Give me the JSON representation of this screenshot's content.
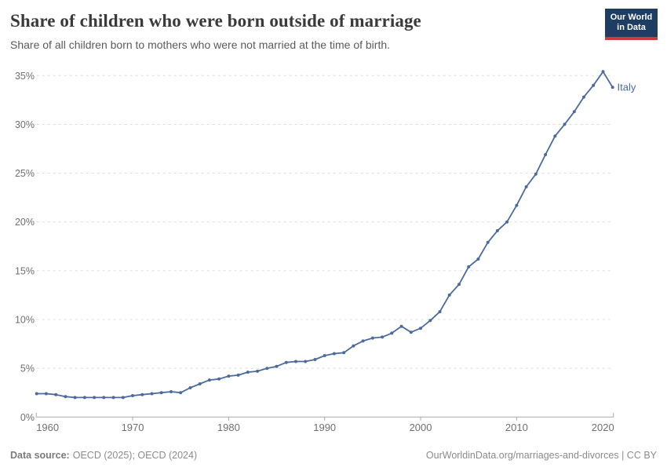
{
  "header": {
    "title": "Share of children who were born outside of marriage",
    "subtitle": "Share of all children born to mothers who were not married at the time of birth."
  },
  "logo": {
    "line1": "Our World",
    "line2": "in Data",
    "bg_color": "#1d3d63",
    "stripe_color": "#cc3b3b"
  },
  "footer": {
    "source_label": "Data source:",
    "source_value": "OECD (2025); OECD (2024)",
    "credit": "OurWorldinData.org/marriages-and-divorces | CC BY"
  },
  "chart_data": {
    "type": "line",
    "title": "Share of children who were born outside of marriage",
    "subtitle": "Share of all children born to mothers who were not married at the time of birth.",
    "xlabel": "",
    "ylabel": "",
    "xlim": [
      1960,
      2020
    ],
    "ylim": [
      0,
      35
    ],
    "xticks": [
      1960,
      1970,
      1980,
      1990,
      2000,
      2010,
      2020
    ],
    "yticks": [
      0,
      5,
      10,
      15,
      20,
      25,
      30,
      35
    ],
    "ytick_suffix": "%",
    "grid": true,
    "gridline_style": "dashed",
    "legend_position": "end-of-line",
    "line_color": "#4c6a9c",
    "axis_color": "#a9a9a9",
    "gridline_color": "#dcdcdc",
    "tick_label_color": "#6f6f6f",
    "series": [
      {
        "name": "Italy",
        "color": "#4c6a9c",
        "years": [
          1960,
          1961,
          1962,
          1963,
          1964,
          1965,
          1966,
          1967,
          1968,
          1969,
          1970,
          1971,
          1972,
          1973,
          1974,
          1975,
          1976,
          1977,
          1978,
          1979,
          1980,
          1981,
          1982,
          1983,
          1984,
          1985,
          1986,
          1987,
          1988,
          1989,
          1990,
          1991,
          1992,
          1993,
          1994,
          1995,
          1996,
          1997,
          1998,
          1999,
          2000,
          2001,
          2002,
          2003,
          2004,
          2005,
          2006,
          2007,
          2008,
          2009,
          2010,
          2011,
          2012,
          2013,
          2014,
          2015,
          2016,
          2017,
          2018,
          2019,
          2020
        ],
        "values": [
          2.4,
          2.4,
          2.3,
          2.1,
          2.0,
          2.0,
          2.0,
          2.0,
          2.0,
          2.0,
          2.2,
          2.3,
          2.4,
          2.5,
          2.6,
          2.5,
          3.0,
          3.4,
          3.8,
          3.9,
          4.2,
          4.3,
          4.6,
          4.7,
          5.0,
          5.2,
          5.6,
          5.7,
          5.7,
          5.9,
          6.3,
          6.5,
          6.6,
          7.3,
          7.8,
          8.1,
          8.2,
          8.6,
          9.3,
          8.7,
          9.1,
          9.9,
          10.8,
          12.5,
          13.6,
          15.4,
          16.2,
          17.9,
          19.1,
          20.0,
          21.7,
          23.6,
          24.9,
          26.9,
          28.8,
          30.0,
          31.3,
          32.8,
          34.0,
          35.4,
          33.8
        ]
      }
    ]
  }
}
